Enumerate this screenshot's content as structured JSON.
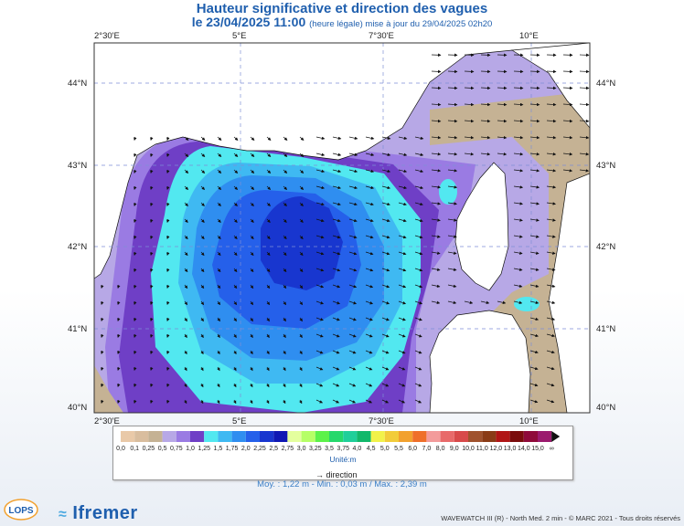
{
  "title": "Hauteur significative et direction des vagues",
  "subtitle_date": "le 23/04/2025 11:00",
  "subtitle_note": "(heure légale) mise à jour du 29/04/2025 02h20",
  "lon_labels": [
    "2°30'E",
    "5°E",
    "7°30'E",
    "10°E"
  ],
  "lat_labels": [
    "44°N",
    "43°N",
    "42°N",
    "41°N",
    "40°N"
  ],
  "legend": {
    "values": [
      "0,0",
      "0,1",
      "0,25",
      "0,5",
      "0,75",
      "1,0",
      "1,25",
      "1,5",
      "1,75",
      "2,0",
      "2,25",
      "2,5",
      "2,75",
      "3,0",
      "3,25",
      "3,5",
      "3,75",
      "4,0",
      "4,5",
      "5,0",
      "5,5",
      "6,0",
      "7,0",
      "8,0",
      "9,0",
      "10,0",
      "11,0",
      "12,0",
      "13,0",
      "14,0",
      "15,0",
      "∞"
    ],
    "colors": [
      "#e9c9a8",
      "#d9bd9e",
      "#c5b294",
      "#b7a8e6",
      "#9a7be3",
      "#6f3fc6",
      "#52e8f0",
      "#3fb9f2",
      "#2f8ef0",
      "#2560ea",
      "#1836cf",
      "#0f18b4",
      "#e4ff9e",
      "#b6ff66",
      "#5cf24a",
      "#25d86b",
      "#1fcf9a",
      "#11b86a",
      "#f2f24a",
      "#f2cc3a",
      "#f2a12e",
      "#ef6f2a",
      "#f39b9b",
      "#e86a6a",
      "#d84a4a",
      "#a0522d",
      "#8a3b16",
      "#b01515",
      "#7a0c0c",
      "#8f0a3a",
      "#9b1a6e"
    ],
    "unit": "Unité:m",
    "direction_label": "direction"
  },
  "stats": "Moy. : 1,22 m   -   Min. : 0,03 m / Max. : 2,39 m",
  "footer": "WAVEWATCH III (R) - North Med. 2 min - © MARC 2021 - Tous droits réservés",
  "brand": "Ifremer",
  "lops_logo": "LOPS"
}
